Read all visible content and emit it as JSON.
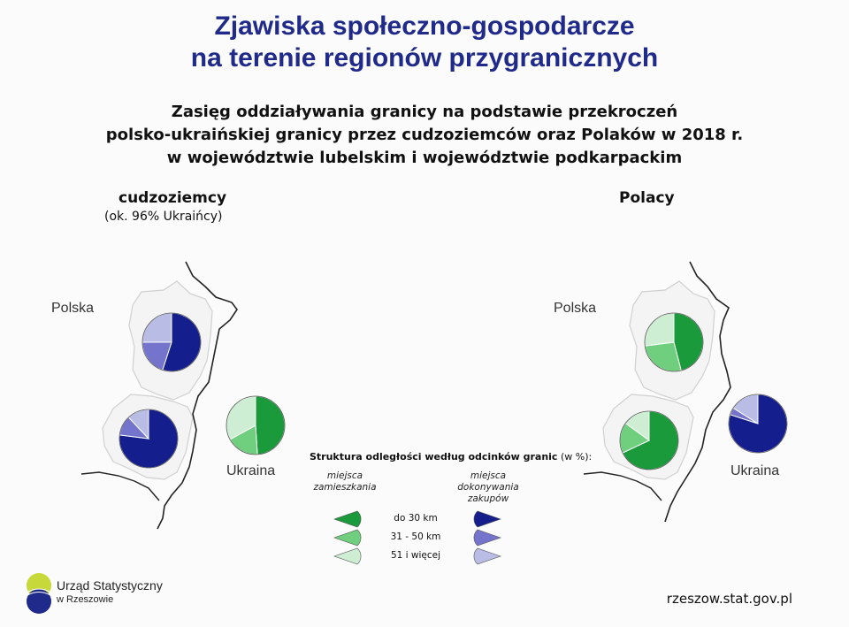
{
  "title": {
    "line1": "Zjawiska społeczno-gospodarcze",
    "line2": "na terenie regionów przygranicznych"
  },
  "subtitle": {
    "line1": "Zasięg oddziaływania granicy na podstawie przekroczeń",
    "line2": "polsko-ukraińskiej granicy przez cudzoziemców oraz Polaków w 2018 r.",
    "line3": "w województwie lubelskim i województwie podkarpackim"
  },
  "panels": {
    "left": {
      "label": "cudzoziemcy",
      "sublabel": "(ok. 96% Ukraińcy)",
      "country_pl": "Polska",
      "country_ua": "Ukraina"
    },
    "right": {
      "label": "Polacy",
      "country_pl": "Polska",
      "country_ua": "Ukraina"
    }
  },
  "legend": {
    "heading_bold": "Struktura odległości według odcinków granic",
    "heading_unit": "(w %):",
    "col_left": "miejsca zamieszkania",
    "col_right": "miejsca dokonywania zakupów",
    "rows": [
      "do 30 km",
      "31 - 50 km",
      "51 i więcej"
    ]
  },
  "colors": {
    "green": [
      "#1a9a3a",
      "#6fcf7f",
      "#cdeed2"
    ],
    "blue": [
      "#141e8c",
      "#7474cc",
      "#b9bde6"
    ],
    "map_fill": "#f4f4f4",
    "map_stroke": "#cfcfcf",
    "border": "#222222"
  },
  "footer": {
    "org_line1": "Urząd Statystyczny",
    "org_line2": "w Rzeszowie",
    "url": "rzeszow.stat.gov.pl"
  },
  "chart_data": [
    {
      "type": "pie",
      "panel": "cudzoziemcy",
      "location": "województwo lubelskie",
      "metric": "miejsca zamieszkania",
      "categories": [
        "do 30 km",
        "31 - 50 km",
        "51 i więcej"
      ],
      "values": [
        55,
        20,
        25
      ]
    },
    {
      "type": "pie",
      "panel": "cudzoziemcy",
      "location": "województwo podkarpackie",
      "metric": "miejsca zamieszkania",
      "categories": [
        "do 30 km",
        "31 - 50 km",
        "51 i więcej"
      ],
      "values": [
        77,
        11,
        12
      ]
    },
    {
      "type": "pie",
      "panel": "cudzoziemcy",
      "location": "Ukraina",
      "metric": "miejsca dokonywania zakupów",
      "categories": [
        "do 30 km",
        "31 - 50 km",
        "51 i więcej"
      ],
      "values": [
        49,
        18,
        33
      ]
    },
    {
      "type": "pie",
      "panel": "Polacy",
      "location": "województwo lubelskie",
      "metric": "miejsca zamieszkania",
      "categories": [
        "do 30 km",
        "31 - 50 km",
        "51 i więcej"
      ],
      "values": [
        46,
        27,
        27
      ]
    },
    {
      "type": "pie",
      "panel": "Polacy",
      "location": "województwo podkarpackie",
      "metric": "miejsca zamieszkania",
      "categories": [
        "do 30 km",
        "31 - 50 km",
        "51 i więcej"
      ],
      "values": [
        68,
        17,
        15
      ]
    },
    {
      "type": "pie",
      "panel": "Polacy",
      "location": "Ukraina",
      "metric": "miejsca dokonywania zakupów",
      "categories": [
        "do 30 km",
        "31 - 50 km",
        "51 i więcej"
      ],
      "values": [
        80,
        4,
        16
      ]
    }
  ]
}
